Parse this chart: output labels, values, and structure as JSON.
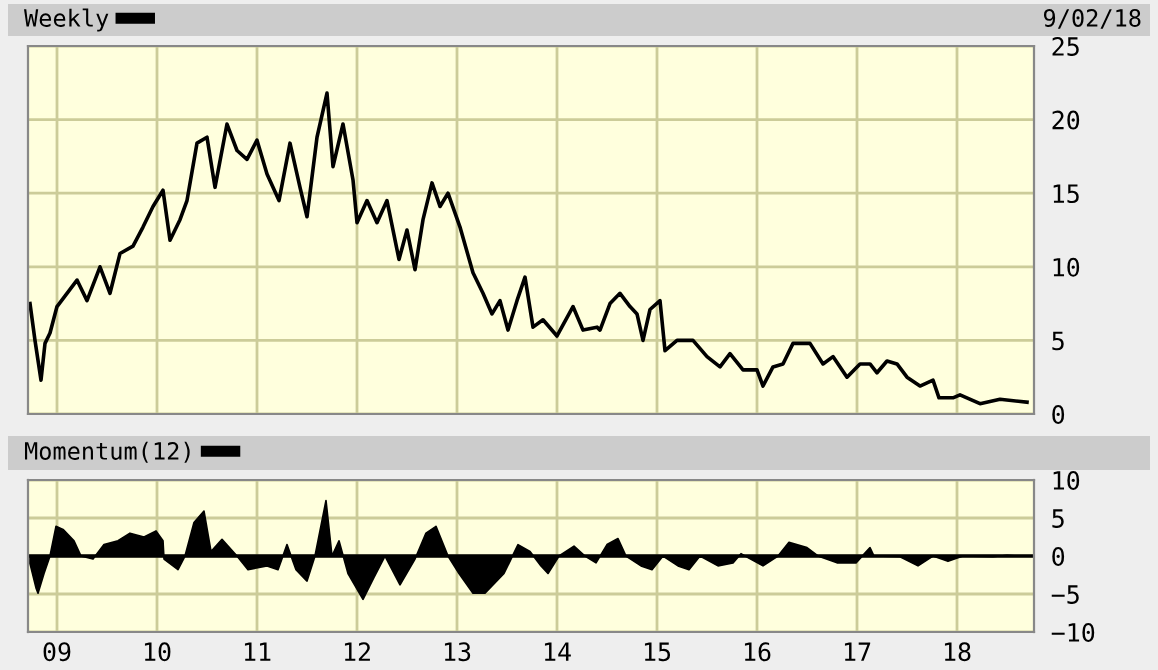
{
  "chart_data": [
    {
      "type": "line",
      "annotations": [
        "9/02/18"
      ],
      "legend": "top left",
      "grid": true,
      "tick_labels": "y",
      "xlim": [
        2008.71,
        2018.77
      ],
      "xticks": [
        {
          "value": 2009,
          "label": null
        },
        {
          "value": 2010,
          "label": null
        },
        {
          "value": 2011,
          "label": null
        },
        {
          "value": 2012,
          "label": null
        },
        {
          "value": 2013,
          "label": null
        },
        {
          "value": 2014,
          "label": null
        },
        {
          "value": 2015,
          "label": null
        },
        {
          "value": 2016,
          "label": null
        },
        {
          "value": 2017,
          "label": null
        },
        {
          "value": 2018,
          "label": null
        }
      ],
      "ylim": [
        0,
        25
      ],
      "yticks": [
        0,
        5,
        10,
        15,
        20,
        25
      ],
      "series": [
        {
          "name": "Weekly",
          "color": "#000000",
          "x": [
            2008.73,
            2008.78,
            2008.84,
            2008.88,
            2008.93,
            2009.0,
            2009.1,
            2009.2,
            2009.3,
            2009.43,
            2009.53,
            2009.63,
            2009.76,
            2009.86,
            2009.96,
            2010.06,
            2010.13,
            2010.23,
            2010.3,
            2010.4,
            2010.5,
            2010.58,
            2010.7,
            2010.8,
            2010.9,
            2011.0,
            2011.1,
            2011.22,
            2011.33,
            2011.43,
            2011.5,
            2011.6,
            2011.7,
            2011.76,
            2011.86,
            2011.96,
            2012.0,
            2012.1,
            2012.2,
            2012.3,
            2012.42,
            2012.5,
            2012.58,
            2012.66,
            2012.75,
            2012.83,
            2012.91,
            2013.03,
            2013.16,
            2013.26,
            2013.35,
            2013.43,
            2013.51,
            2013.6,
            2013.68,
            2013.76,
            2013.86,
            2014.0,
            2014.16,
            2014.26,
            2014.4,
            2014.43,
            2014.53,
            2014.63,
            2014.73,
            2014.8,
            2014.86,
            2014.93,
            2015.03,
            2015.08,
            2015.2,
            2015.36,
            2015.5,
            2015.63,
            2015.73,
            2015.86,
            2016.0,
            2016.06,
            2016.16,
            2016.26,
            2016.36,
            2016.53,
            2016.66,
            2016.76,
            2016.9,
            2017.03,
            2017.13,
            2017.2,
            2017.3,
            2017.4,
            2017.5,
            2017.63,
            2017.76,
            2017.82,
            2017.96,
            2018.03,
            2018.23,
            2018.43,
            2018.7
          ],
          "values": [
            7.5,
            5.0,
            2.3,
            4.8,
            5.5,
            7.3,
            8.2,
            9.1,
            7.7,
            10.0,
            8.2,
            10.9,
            11.4,
            12.7,
            14.1,
            15.2,
            11.8,
            13.2,
            14.5,
            18.4,
            18.8,
            15.4,
            19.7,
            17.9,
            17.3,
            18.6,
            16.3,
            14.5,
            18.4,
            15.4,
            13.4,
            18.8,
            21.8,
            16.8,
            19.7,
            15.9,
            13.0,
            14.5,
            13.0,
            14.5,
            10.5,
            12.5,
            9.8,
            13.2,
            15.7,
            14.1,
            15.0,
            12.7,
            9.6,
            8.2,
            6.8,
            7.7,
            5.7,
            7.7,
            9.3,
            5.9,
            6.4,
            5.3,
            7.3,
            5.7,
            5.9,
            5.7,
            7.5,
            8.2,
            7.3,
            6.8,
            5.0,
            7.1,
            7.7,
            4.3,
            5.0,
            5.0,
            3.9,
            3.2,
            4.1,
            3.0,
            3.0,
            1.9,
            3.2,
            3.4,
            4.8,
            4.8,
            3.4,
            3.9,
            2.5,
            3.4,
            3.4,
            2.8,
            3.6,
            3.4,
            2.5,
            1.9,
            2.3,
            1.1,
            1.1,
            1.3,
            0.7,
            1.0,
            0.8
          ]
        }
      ]
    },
    {
      "type": "area",
      "legend": "top left",
      "grid": true,
      "xlim": [
        2008.71,
        2018.77
      ],
      "xticks": [
        {
          "value": 2009,
          "label": "09"
        },
        {
          "value": 2010,
          "label": "10"
        },
        {
          "value": 2011,
          "label": "11"
        },
        {
          "value": 2012,
          "label": "12"
        },
        {
          "value": 2013,
          "label": "13"
        },
        {
          "value": 2014,
          "label": "14"
        },
        {
          "value": 2015,
          "label": "15"
        },
        {
          "value": 2016,
          "label": "16"
        },
        {
          "value": 2017,
          "label": "17"
        },
        {
          "value": 2018,
          "label": "18"
        }
      ],
      "ylim": [
        -10,
        10
      ],
      "yticks": [
        {
          "value": -10,
          "label": "−10"
        },
        {
          "value": -5,
          "label": "−5"
        },
        0,
        5,
        10
      ],
      "ref_lines": [
        {
          "axis": "y",
          "value": 0,
          "label": null,
          "color": "#000000"
        }
      ],
      "series": [
        {
          "name": "Momentum(12)",
          "color": "#000000",
          "x": [
            2008.73,
            2008.79,
            2008.81,
            2008.87,
            2008.93,
            2008.99,
            2009.06,
            2009.17,
            2009.24,
            2009.36,
            2009.47,
            2009.61,
            2009.73,
            2009.87,
            2009.99,
            2010.06,
            2010.07,
            2010.21,
            2010.28,
            2010.37,
            2010.47,
            2010.54,
            2010.65,
            2010.8,
            2010.91,
            2011.1,
            2011.21,
            2011.3,
            2011.39,
            2011.5,
            2011.58,
            2011.69,
            2011.75,
            2011.82,
            2011.91,
            2012.06,
            2012.17,
            2012.28,
            2012.43,
            2012.58,
            2012.69,
            2012.79,
            2012.91,
            2013.02,
            2013.16,
            2013.28,
            2013.47,
            2013.61,
            2013.73,
            2013.84,
            2013.91,
            2014.02,
            2014.17,
            2014.28,
            2014.39,
            2014.5,
            2014.61,
            2014.69,
            2014.84,
            2014.95,
            2015.06,
            2015.21,
            2015.32,
            2015.43,
            2015.61,
            2015.76,
            2015.84,
            2016.06,
            2016.21,
            2016.32,
            2016.5,
            2016.61,
            2016.8,
            2016.99,
            2017.13,
            2017.17,
            2017.43,
            2017.61,
            2017.76,
            2017.91,
            2018.06,
            2018.36,
            2018.5,
            2018.61
          ],
          "values": [
            -1.0,
            -4.2,
            -4.9,
            -2.3,
            0,
            3.9,
            3.5,
            2.0,
            0,
            -0.4,
            1.5,
            2.0,
            3.0,
            2.5,
            3.3,
            2.0,
            -0.4,
            -1.8,
            0,
            4.4,
            5.9,
            0.6,
            2.2,
            0,
            -1.8,
            -1.3,
            -1.8,
            1.5,
            -1.8,
            -3.3,
            0,
            7.3,
            0,
            2.0,
            -2.3,
            -5.7,
            -2.8,
            0,
            -3.8,
            -0.4,
            3.0,
            3.9,
            0,
            -2.3,
            -4.9,
            -4.9,
            -2.3,
            1.5,
            0.6,
            -1.3,
            -2.3,
            0,
            1.3,
            0,
            -0.9,
            1.5,
            2.3,
            0,
            -1.3,
            -1.8,
            0,
            -1.3,
            -1.8,
            0,
            -1.3,
            -0.9,
            0.3,
            -1.3,
            0,
            1.8,
            1.1,
            0,
            -0.9,
            -0.9,
            1.1,
            0,
            -0.1,
            -1.3,
            0,
            -0.7,
            0,
            -0.1,
            0.1,
            0
          ]
        }
      ]
    }
  ]
}
